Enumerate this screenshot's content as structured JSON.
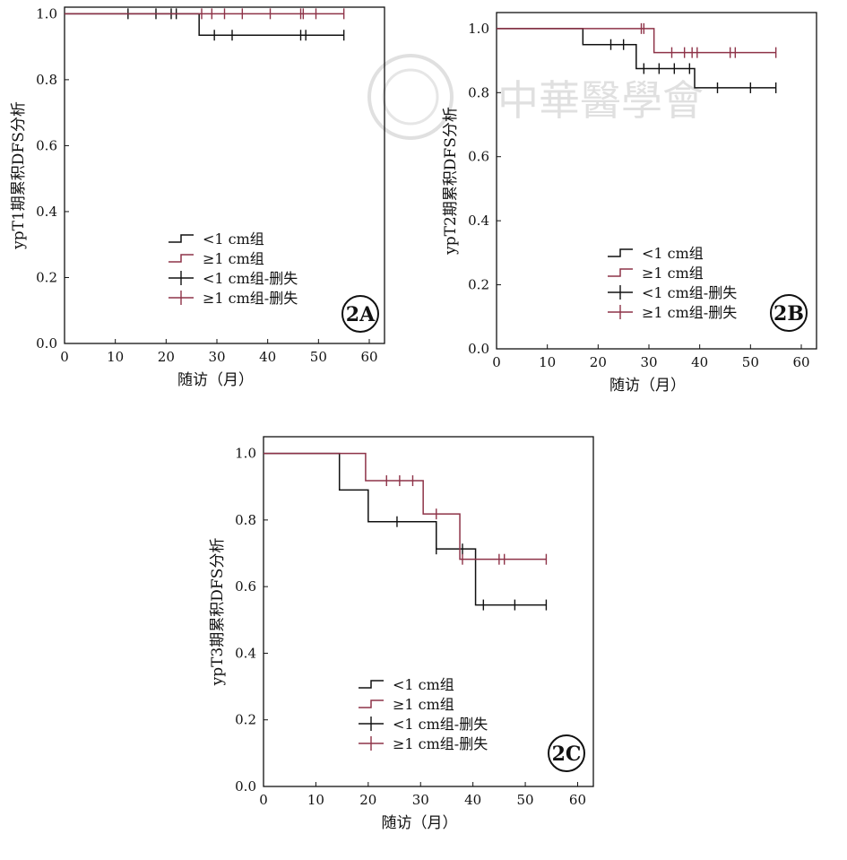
{
  "watermark": {
    "text": "中華醫學會"
  },
  "chart_data": [
    {
      "type": "line",
      "panel_label": "2A",
      "xlabel": "随访（月）",
      "ylabel": "ypT1期累积DFS分析",
      "xlim": [
        0,
        63
      ],
      "ylim": [
        0,
        1.02
      ],
      "xticks": [
        0,
        10,
        20,
        30,
        40,
        50,
        60
      ],
      "yticks": [
        0.0,
        0.2,
        0.4,
        0.6,
        0.8,
        1.0
      ],
      "legend_position": "center-left",
      "legend": [
        "<1 cm组",
        "≥1 cm组",
        "<1 cm组-删失",
        "≥1 cm组-删失"
      ],
      "series": [
        {
          "name": "<1 cm组",
          "color": "#111111",
          "steps": [
            [
              0,
              1.0
            ],
            [
              26.5,
              0.935
            ],
            [
              55,
              0.935
            ]
          ],
          "censored": [
            [
              12.5,
              1.0
            ],
            [
              18,
              1.0
            ],
            [
              21,
              1.0
            ],
            [
              22,
              1.0
            ],
            [
              29.5,
              0.935
            ],
            [
              33,
              0.935
            ],
            [
              46.5,
              0.935
            ],
            [
              47.5,
              0.935
            ],
            [
              55,
              0.935
            ]
          ]
        },
        {
          "name": "≥1 cm组",
          "color": "#8e3348",
          "steps": [
            [
              0,
              1.0
            ],
            [
              55,
              1.0
            ]
          ],
          "censored": [
            [
              27,
              1.0
            ],
            [
              29,
              1.0
            ],
            [
              31.5,
              1.0
            ],
            [
              35,
              1.0
            ],
            [
              40.5,
              1.0
            ],
            [
              46.5,
              1.0
            ],
            [
              47,
              1.0
            ],
            [
              49.5,
              1.0
            ],
            [
              55,
              1.0
            ]
          ]
        }
      ]
    },
    {
      "type": "line",
      "panel_label": "2B",
      "xlabel": "随访（月）",
      "ylabel": "ypT2期累积DFS分析",
      "xlim": [
        0,
        63
      ],
      "ylim": [
        0,
        1.05
      ],
      "xticks": [
        0,
        10,
        20,
        30,
        40,
        50,
        60
      ],
      "yticks": [
        0.0,
        0.2,
        0.4,
        0.6,
        0.8,
        1.0
      ],
      "legend_position": "center-left",
      "legend": [
        "<1 cm组",
        "≥1 cm组",
        "<1 cm组-删失",
        "≥1 cm组-删失"
      ],
      "series": [
        {
          "name": "<1 cm组",
          "color": "#111111",
          "steps": [
            [
              0,
              1.0
            ],
            [
              17,
              0.95
            ],
            [
              27.5,
              0.875
            ],
            [
              39,
              0.815
            ],
            [
              55,
              0.815
            ]
          ],
          "censored": [
            [
              22.5,
              0.95
            ],
            [
              25,
              0.95
            ],
            [
              29,
              0.875
            ],
            [
              32,
              0.875
            ],
            [
              35,
              0.875
            ],
            [
              38,
              0.875
            ],
            [
              43.5,
              0.815
            ],
            [
              50,
              0.815
            ],
            [
              55,
              0.815
            ]
          ]
        },
        {
          "name": "≥1 cm组",
          "color": "#8e3348",
          "steps": [
            [
              0,
              1.0
            ],
            [
              31,
              0.925
            ],
            [
              55,
              0.925
            ]
          ],
          "censored": [
            [
              28.5,
              1.0
            ],
            [
              29,
              1.0
            ],
            [
              34.5,
              0.925
            ],
            [
              37,
              0.925
            ],
            [
              38.5,
              0.925
            ],
            [
              39.5,
              0.925
            ],
            [
              46,
              0.925
            ],
            [
              47,
              0.925
            ],
            [
              55,
              0.925
            ]
          ]
        }
      ]
    },
    {
      "type": "line",
      "panel_label": "2C",
      "xlabel": "随访（月）",
      "ylabel": "ypT3期累积DFS分析",
      "xlim": [
        0,
        63
      ],
      "ylim": [
        0,
        1.05
      ],
      "xticks": [
        0,
        10,
        20,
        30,
        40,
        50,
        60
      ],
      "yticks": [
        0.0,
        0.2,
        0.4,
        0.6,
        0.8,
        1.0
      ],
      "legend_position": "bottom-left",
      "legend": [
        "<1 cm组",
        "≥1 cm组",
        "<1 cm组-删失",
        "≥1 cm组-删失"
      ],
      "series": [
        {
          "name": "<1 cm组",
          "color": "#111111",
          "steps": [
            [
              0,
              1.0
            ],
            [
              14.5,
              0.89
            ],
            [
              20,
              0.795
            ],
            [
              33,
              0.713
            ],
            [
              40.5,
              0.545
            ],
            [
              54,
              0.545
            ]
          ],
          "censored": [
            [
              25.5,
              0.795
            ],
            [
              33,
              0.713
            ],
            [
              38,
              0.713
            ],
            [
              42,
              0.545
            ],
            [
              48,
              0.545
            ],
            [
              54,
              0.545
            ]
          ]
        },
        {
          "name": "≥1 cm组",
          "color": "#8e3348",
          "steps": [
            [
              0,
              1.0
            ],
            [
              19.5,
              0.918
            ],
            [
              30.5,
              0.818
            ],
            [
              37.5,
              0.682
            ],
            [
              54,
              0.682
            ]
          ],
          "censored": [
            [
              23.5,
              0.918
            ],
            [
              26,
              0.918
            ],
            [
              28.5,
              0.918
            ],
            [
              33,
              0.818
            ],
            [
              38,
              0.682
            ],
            [
              45,
              0.682
            ],
            [
              46,
              0.682
            ],
            [
              54,
              0.682
            ]
          ]
        }
      ]
    }
  ]
}
